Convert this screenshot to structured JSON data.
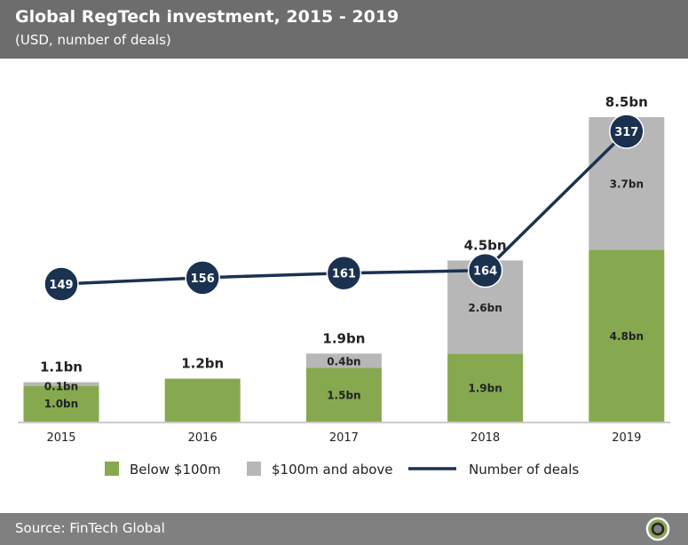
{
  "header": {
    "title": "Global RegTech investment, 2015 - 2019",
    "subtitle": "(USD, number of deals)"
  },
  "footer": {
    "source": "Source: FinTech Global"
  },
  "colors": {
    "below": "#86a94f",
    "above": "#b7b7b7",
    "line": "#1b3150"
  },
  "chart_data": {
    "type": "bar",
    "title": "Global RegTech investment, 2015 - 2019",
    "categories": [
      "2015",
      "2016",
      "2017",
      "2018",
      "2019"
    ],
    "series": [
      {
        "name": "Below $100m",
        "values": [
          1.0,
          1.2,
          1.5,
          1.9,
          4.8
        ],
        "labels": [
          "1.0bn",
          "",
          "1.5bn",
          "1.9bn",
          "4.8bn"
        ]
      },
      {
        "name": "$100m and above",
        "values": [
          0.1,
          0,
          0.4,
          2.6,
          3.7
        ],
        "labels": [
          "0.1bn",
          "",
          "0.4bn",
          "2.6bn",
          "3.7bn"
        ]
      },
      {
        "name": "Number of deals",
        "type": "line",
        "values": [
          149,
          156,
          161,
          164,
          317
        ]
      }
    ],
    "totals": [
      "1.1bn",
      "1.2bn",
      "1.9bn",
      "4.5bn",
      "8.5bn"
    ],
    "total_values": [
      1.1,
      1.2,
      1.9,
      4.5,
      8.5
    ],
    "ylim": [
      0,
      8.5
    ],
    "legend": "bottom"
  }
}
